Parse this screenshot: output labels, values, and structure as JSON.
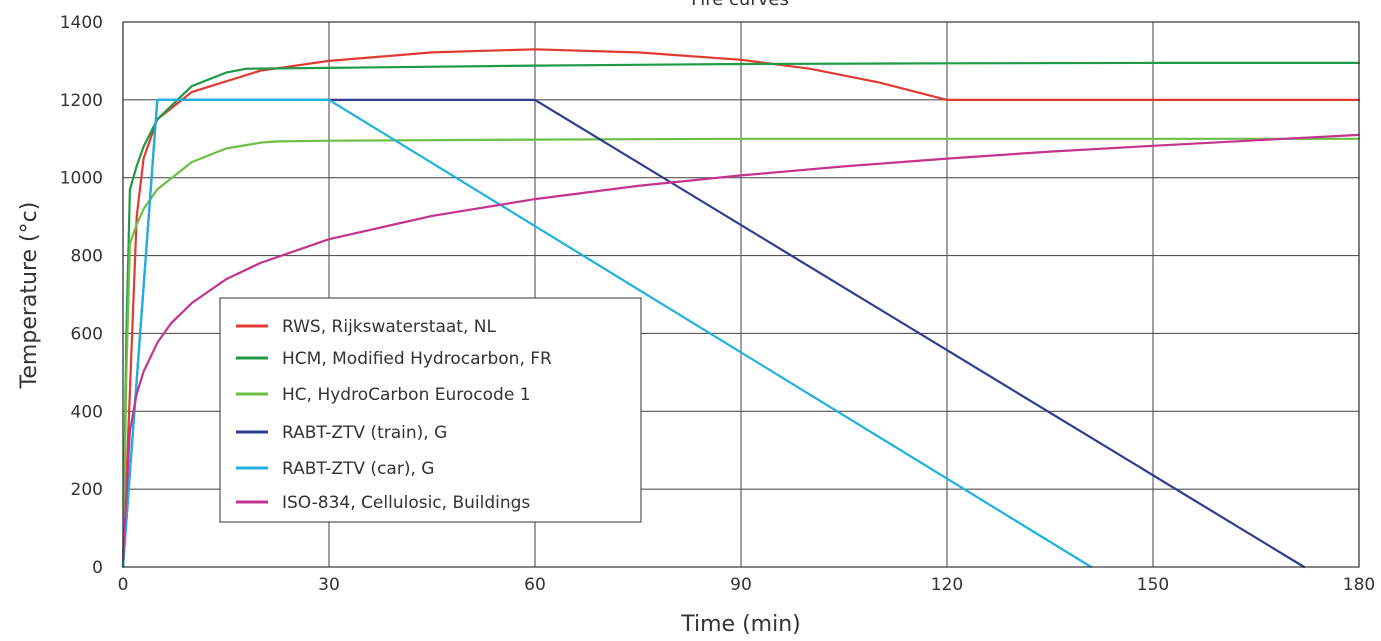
{
  "chart_data": {
    "type": "line",
    "title": "Fire curves",
    "xlabel": "Time (min)",
    "ylabel": "Temperature (°c)",
    "xlim": [
      0,
      180
    ],
    "ylim": [
      0,
      1400
    ],
    "x_ticks": [
      "0",
      "30",
      "60",
      "90",
      "120",
      "150",
      "180"
    ],
    "y_ticks": [
      "0",
      "200",
      "400",
      "600",
      "800",
      "1000",
      "1200",
      "1400"
    ],
    "grid": true,
    "legend_position": "center-left",
    "series": [
      {
        "name": "RWS, Rijkswaterstaat, NL",
        "color": "#e03a32",
        "x": [
          0,
          1,
          2,
          3,
          5,
          10,
          20,
          30,
          45,
          60,
          75,
          90,
          100,
          110,
          120,
          130,
          150,
          180
        ],
        "y": [
          0,
          450,
          900,
          1050,
          1150,
          1220,
          1275,
          1300,
          1322,
          1330,
          1322,
          1303,
          1280,
          1245,
          1200,
          1200,
          1200,
          1200
        ]
      },
      {
        "name": "HCM, Modified Hydrocarbon, FR",
        "color": "#1f9b45",
        "x": [
          0,
          0.5,
          1,
          2,
          3,
          5,
          10,
          15,
          18,
          30,
          60,
          90,
          120,
          150,
          180
        ],
        "y": [
          0,
          600,
          970,
          1030,
          1080,
          1150,
          1235,
          1270,
          1280,
          1282,
          1288,
          1292,
          1294,
          1295,
          1295
        ]
      },
      {
        "name": "HC, HydroCarbon Eurocode 1",
        "color": "#6abf44",
        "x": [
          0,
          0.5,
          1,
          2,
          3,
          5,
          10,
          15,
          20,
          22,
          30,
          60,
          90,
          120,
          150,
          180
        ],
        "y": [
          0,
          500,
          830,
          880,
          920,
          970,
          1040,
          1075,
          1090,
          1093,
          1095,
          1098,
          1100,
          1100,
          1100,
          1100
        ]
      },
      {
        "name": "RABT-ZTV (train), G",
        "color": "#2e3d8f",
        "x": [
          0,
          5,
          60,
          172
        ],
        "y": [
          0,
          1200,
          1200,
          0
        ]
      },
      {
        "name": "RABT-ZTV (car), G",
        "color": "#1fb2e0",
        "x": [
          0,
          5,
          30,
          141
        ],
        "y": [
          0,
          1200,
          1200,
          0
        ]
      },
      {
        "name": "ISO-834, Cellulosic, Buildings",
        "color": "#c4338f",
        "x": [
          0,
          1,
          2,
          3,
          5,
          7,
          10,
          15,
          20,
          30,
          45,
          60,
          75,
          90,
          105,
          120,
          135,
          150,
          165,
          180
        ],
        "y": [
          20,
          349,
          445,
          502,
          576,
          626,
          678,
          739,
          781,
          842,
          902,
          945,
          979,
          1006,
          1029,
          1049,
          1067,
          1082,
          1096,
          1110
        ]
      }
    ]
  }
}
